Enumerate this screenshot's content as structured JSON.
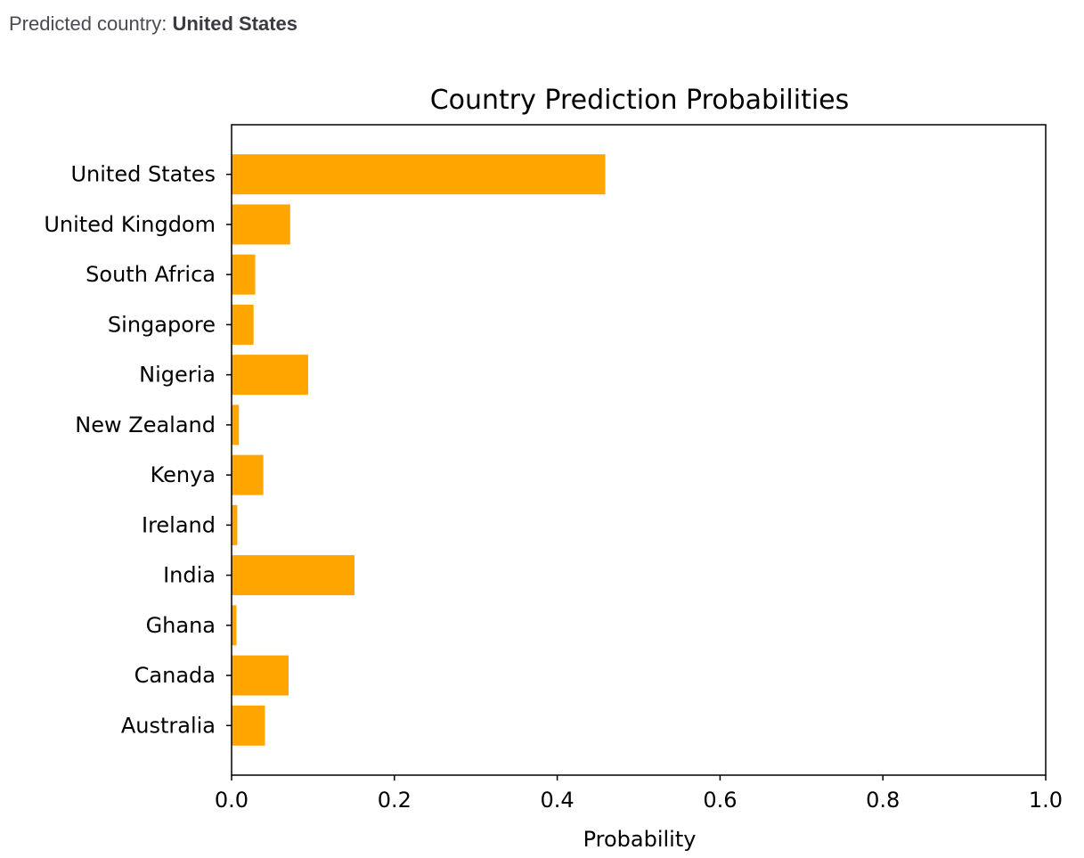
{
  "prediction": {
    "label": "Predicted country:",
    "value": "United States"
  },
  "colors": {
    "bar": "#FFA500",
    "axis": "#000000"
  },
  "chart_data": {
    "type": "bar",
    "orientation": "horizontal",
    "title": "Country Prediction Probabilities",
    "xlabel": "Probability",
    "ylabel": "",
    "xlim": [
      0,
      1.0
    ],
    "xticks": [
      "0.0",
      "0.2",
      "0.4",
      "0.6",
      "0.8",
      "1.0"
    ],
    "categories": [
      "Australia",
      "Canada",
      "Ghana",
      "India",
      "Ireland",
      "Kenya",
      "New Zealand",
      "Nigeria",
      "Singapore",
      "South Africa",
      "United Kingdom",
      "United States"
    ],
    "values": [
      0.041,
      0.07,
      0.006,
      0.151,
      0.007,
      0.039,
      0.009,
      0.094,
      0.027,
      0.029,
      0.072,
      0.459
    ],
    "grid": false
  }
}
